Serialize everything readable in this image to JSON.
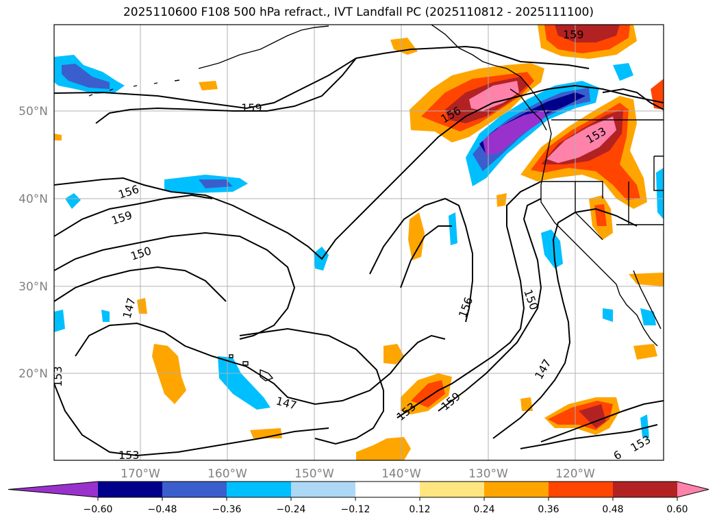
{
  "title": "2025110600 F108 500 hPa refract., IVT Landfall PC (2025110812 - 2025111100)",
  "lat_labels": [
    "50°N",
    "40°N",
    "30°N",
    "20°N"
  ],
  "lon_labels": [
    "170°W",
    "160°W",
    "150°W",
    "140°W",
    "130°W",
    "120°W"
  ],
  "contour_labels": [
    "159",
    "159",
    "156",
    "159",
    "150",
    "147",
    "153",
    "147",
    "153",
    "159",
    "156",
    "150",
    "147",
    "153",
    "156",
    "153",
    "153",
    "6"
  ],
  "colorbar": {
    "ticks": [
      "−0.60",
      "−0.48",
      "−0.36",
      "−0.24",
      "−0.12",
      "0.12",
      "0.24",
      "0.36",
      "0.48",
      "0.60"
    ],
    "colors": [
      "#9932cc",
      "#00008b",
      "#3a5fcd",
      "#00bfff",
      "#add8f5",
      "#ffffff",
      "#ffe680",
      "#ffa500",
      "#ff4500",
      "#b22222",
      "#ff82ab"
    ]
  },
  "colors": {
    "contour": "#000000",
    "grid": "#b0b0b0",
    "coast": "#000000"
  }
}
